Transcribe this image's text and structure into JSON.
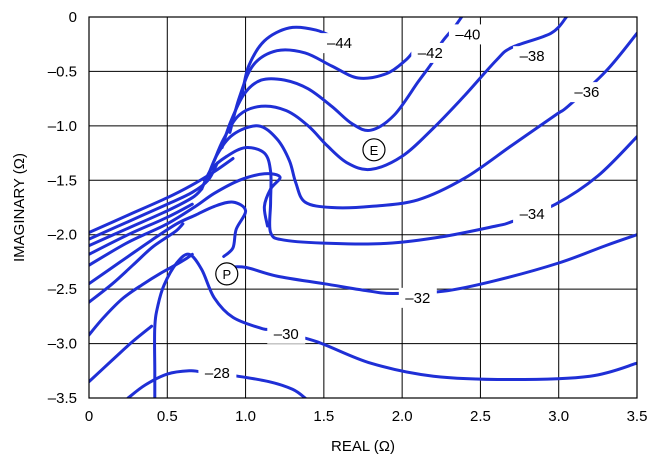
{
  "chart_data": {
    "type": "contour",
    "xlabel": "REAL (Ω)",
    "ylabel": "IMAGINARY (Ω)",
    "xlim": [
      0,
      3.5
    ],
    "ylim": [
      -3.5,
      0
    ],
    "x_ticks": [
      0,
      0.5,
      1.0,
      1.5,
      2.0,
      2.5,
      3.0,
      3.5
    ],
    "y_ticks": [
      0,
      -0.5,
      -1.0,
      -1.5,
      -2.0,
      -2.5,
      -3.0,
      -3.5
    ],
    "x_tick_labels": [
      "0",
      "0.5",
      "1.0",
      "1.5",
      "2.0",
      "2.5",
      "3.0",
      "3.5"
    ],
    "y_tick_labels": [
      "0",
      "–0.5",
      "–1.0",
      "–1.5",
      "–2.0",
      "–2.5",
      "–3.0",
      "–3.5"
    ],
    "grid": true,
    "line_color": "#1f2fd6",
    "contours": [
      {
        "level": "–44",
        "label_at": [
          1.6,
          -0.24
        ],
        "points": [
          [
            0.98,
            -0.7
          ],
          [
            1.02,
            -0.45
          ],
          [
            1.12,
            -0.22
          ],
          [
            1.28,
            -0.1
          ],
          [
            1.45,
            -0.12
          ],
          [
            1.58,
            -0.2
          ]
        ]
      },
      {
        "level": "–42",
        "label_at": [
          2.18,
          -0.33
        ],
        "points": [
          [
            0.9,
            -1.06
          ],
          [
            0.96,
            -0.74
          ],
          [
            1.05,
            -0.44
          ],
          [
            1.2,
            -0.31
          ],
          [
            1.38,
            -0.33
          ],
          [
            1.55,
            -0.45
          ],
          [
            1.72,
            -0.56
          ],
          [
            1.9,
            -0.52
          ],
          [
            2.02,
            -0.4
          ],
          [
            2.08,
            -0.3
          ]
        ]
      },
      {
        "level": "–40",
        "label_at": [
          2.42,
          -0.16
        ],
        "points": [
          [
            0.85,
            -1.2
          ],
          [
            0.9,
            -0.98
          ],
          [
            0.99,
            -0.71
          ],
          [
            1.1,
            -0.58
          ],
          [
            1.25,
            -0.58
          ],
          [
            1.4,
            -0.66
          ],
          [
            1.55,
            -0.82
          ],
          [
            1.68,
            -0.98
          ],
          [
            1.8,
            -1.04
          ],
          [
            1.95,
            -0.9
          ],
          [
            2.1,
            -0.6
          ],
          [
            2.2,
            -0.4
          ],
          [
            2.25,
            -0.24
          ],
          [
            2.33,
            -0.1
          ],
          [
            2.38,
            0.0
          ]
        ]
      },
      {
        "level": "–38",
        "label_at": [
          2.83,
          -0.36
        ],
        "points": [
          [
            0.8,
            -1.32
          ],
          [
            0.86,
            -1.12
          ],
          [
            0.96,
            -0.9
          ],
          [
            1.1,
            -0.82
          ],
          [
            1.26,
            -0.86
          ],
          [
            1.4,
            -1.0
          ],
          [
            1.52,
            -1.18
          ],
          [
            1.65,
            -1.34
          ],
          [
            1.8,
            -1.4
          ],
          [
            2.0,
            -1.28
          ],
          [
            2.2,
            -1.02
          ],
          [
            2.4,
            -0.72
          ],
          [
            2.6,
            -0.4
          ],
          [
            2.7,
            -0.28
          ],
          [
            2.95,
            -0.15
          ],
          [
            3.05,
            0.0
          ]
        ]
      },
      {
        "level": "–36",
        "label_at": [
          3.18,
          -0.69
        ],
        "points": [
          [
            0.76,
            -1.46
          ],
          [
            0.82,
            -1.26
          ],
          [
            0.92,
            -1.08
          ],
          [
            1.08,
            -1.0
          ],
          [
            1.2,
            -1.12
          ],
          [
            1.28,
            -1.32
          ],
          [
            1.32,
            -1.52
          ],
          [
            1.38,
            -1.7
          ],
          [
            1.55,
            -1.75
          ],
          [
            1.8,
            -1.74
          ],
          [
            2.1,
            -1.68
          ],
          [
            2.4,
            -1.48
          ],
          [
            2.7,
            -1.18
          ],
          [
            2.98,
            -0.9
          ],
          [
            3.06,
            -0.82
          ],
          [
            3.3,
            -0.5
          ],
          [
            3.5,
            -0.15
          ]
        ]
      },
      {
        "level": "–34",
        "label_at": [
          2.83,
          -1.81
        ],
        "points": [
          [
            0.72,
            -1.58
          ],
          [
            0.78,
            -1.4
          ],
          [
            0.88,
            -1.28
          ],
          [
            1.0,
            -1.2
          ],
          [
            1.12,
            -1.25
          ],
          [
            1.16,
            -1.42
          ],
          [
            1.16,
            -1.7
          ],
          [
            1.16,
            -1.98
          ],
          [
            1.25,
            -2.05
          ],
          [
            1.55,
            -2.08
          ],
          [
            1.9,
            -2.08
          ],
          [
            2.25,
            -2.02
          ],
          [
            2.6,
            -1.92
          ],
          [
            2.7,
            -1.88
          ],
          [
            2.98,
            -1.72
          ],
          [
            3.25,
            -1.46
          ],
          [
            3.5,
            -1.1
          ]
        ]
      },
      {
        "level": "–32",
        "label_at": [
          2.1,
          -2.58
        ],
        "points": [
          [
            0.88,
            -2.3
          ],
          [
            1.0,
            -2.3
          ],
          [
            1.2,
            -2.38
          ],
          [
            1.5,
            -2.45
          ],
          [
            1.8,
            -2.52
          ],
          [
            1.94,
            -2.54
          ],
          [
            2.26,
            -2.52
          ],
          [
            2.6,
            -2.42
          ],
          [
            3.0,
            -2.26
          ],
          [
            3.3,
            -2.1
          ],
          [
            3.5,
            -2.0
          ]
        ]
      },
      {
        "level": "–30",
        "label_at": [
          1.26,
          -2.91
        ],
        "points": [
          [
            0.42,
            -3.5
          ],
          [
            0.42,
            -3.25
          ],
          [
            0.42,
            -2.85
          ],
          [
            0.44,
            -2.65
          ],
          [
            0.48,
            -2.46
          ],
          [
            0.56,
            -2.26
          ],
          [
            0.64,
            -2.18
          ],
          [
            0.72,
            -2.32
          ],
          [
            0.8,
            -2.58
          ],
          [
            0.92,
            -2.76
          ],
          [
            1.1,
            -2.86
          ],
          [
            1.18,
            -2.88
          ],
          [
            1.45,
            -2.98
          ],
          [
            1.8,
            -3.18
          ],
          [
            2.2,
            -3.3
          ],
          [
            2.7,
            -3.33
          ],
          [
            3.2,
            -3.3
          ],
          [
            3.5,
            -3.18
          ]
        ]
      },
      {
        "level": "–28",
        "label_at": [
          0.82,
          -3.27
        ],
        "points": [
          [
            0.25,
            -3.5
          ],
          [
            0.36,
            -3.38
          ],
          [
            0.5,
            -3.28
          ],
          [
            0.64,
            -3.25
          ],
          [
            0.72,
            -3.26
          ],
          [
            0.95,
            -3.3
          ],
          [
            1.15,
            -3.35
          ],
          [
            1.3,
            -3.42
          ],
          [
            1.38,
            -3.5
          ]
        ]
      },
      {
        "level": "",
        "label_at": null,
        "points": [
          [
            0.0,
            -1.98
          ],
          [
            0.25,
            -1.82
          ],
          [
            0.5,
            -1.66
          ],
          [
            0.65,
            -1.55
          ],
          [
            0.8,
            -1.42
          ],
          [
            0.92,
            -1.3
          ]
        ]
      },
      {
        "level": "",
        "label_at": null,
        "points": [
          [
            0.0,
            -2.04
          ],
          [
            0.25,
            -1.88
          ],
          [
            0.5,
            -1.72
          ],
          [
            0.66,
            -1.61
          ],
          [
            0.76,
            -1.5
          ],
          [
            0.82,
            -1.34
          ]
        ]
      },
      {
        "level": "",
        "label_at": null,
        "points": [
          [
            0.0,
            -2.1
          ],
          [
            0.25,
            -1.94
          ],
          [
            0.5,
            -1.78
          ],
          [
            0.66,
            -1.66
          ],
          [
            0.72,
            -1.58
          ]
        ]
      },
      {
        "level": "",
        "label_at": null,
        "points": [
          [
            0.0,
            -2.18
          ],
          [
            0.25,
            -2.0
          ],
          [
            0.5,
            -1.84
          ],
          [
            0.66,
            -1.72
          ]
        ]
      },
      {
        "level": "",
        "label_at": null,
        "points": [
          [
            0.0,
            -2.28
          ],
          [
            0.25,
            -2.07
          ],
          [
            0.5,
            -1.9
          ],
          [
            0.68,
            -1.74
          ],
          [
            0.8,
            -1.62
          ],
          [
            0.96,
            -1.5
          ],
          [
            1.12,
            -1.44
          ],
          [
            1.22,
            -1.47
          ],
          [
            1.16,
            -1.58
          ],
          [
            1.12,
            -1.74
          ],
          [
            1.14,
            -1.92
          ]
        ]
      },
      {
        "level": "",
        "label_at": null,
        "points": [
          [
            0.0,
            -2.45
          ],
          [
            0.2,
            -2.25
          ],
          [
            0.4,
            -2.05
          ],
          [
            0.56,
            -1.9
          ],
          [
            0.68,
            -1.82
          ],
          [
            0.8,
            -1.74
          ],
          [
            0.92,
            -1.7
          ],
          [
            1.0,
            -1.78
          ],
          [
            0.94,
            -1.95
          ],
          [
            0.92,
            -2.12
          ],
          [
            0.86,
            -2.2
          ]
        ]
      },
      {
        "level": "",
        "label_at": null,
        "points": [
          [
            0.0,
            -2.62
          ],
          [
            0.15,
            -2.45
          ],
          [
            0.28,
            -2.28
          ],
          [
            0.4,
            -2.12
          ],
          [
            0.5,
            -2.02
          ],
          [
            0.56,
            -1.96
          ],
          [
            0.6,
            -1.9
          ]
        ]
      },
      {
        "level": "",
        "label_at": null,
        "points": [
          [
            0.0,
            -2.92
          ],
          [
            0.1,
            -2.75
          ],
          [
            0.22,
            -2.58
          ],
          [
            0.35,
            -2.45
          ],
          [
            0.45,
            -2.36
          ],
          [
            0.55,
            -2.28
          ],
          [
            0.62,
            -2.22
          ],
          [
            0.66,
            -2.18
          ]
        ]
      },
      {
        "level": "",
        "label_at": null,
        "points": [
          [
            0.0,
            -3.35
          ],
          [
            0.15,
            -3.15
          ],
          [
            0.28,
            -2.98
          ],
          [
            0.4,
            -2.84
          ]
        ]
      }
    ],
    "markers": [
      {
        "label": "E",
        "x": 1.82,
        "y": -1.22
      },
      {
        "label": "P",
        "x": 0.88,
        "y": -2.36
      }
    ]
  }
}
